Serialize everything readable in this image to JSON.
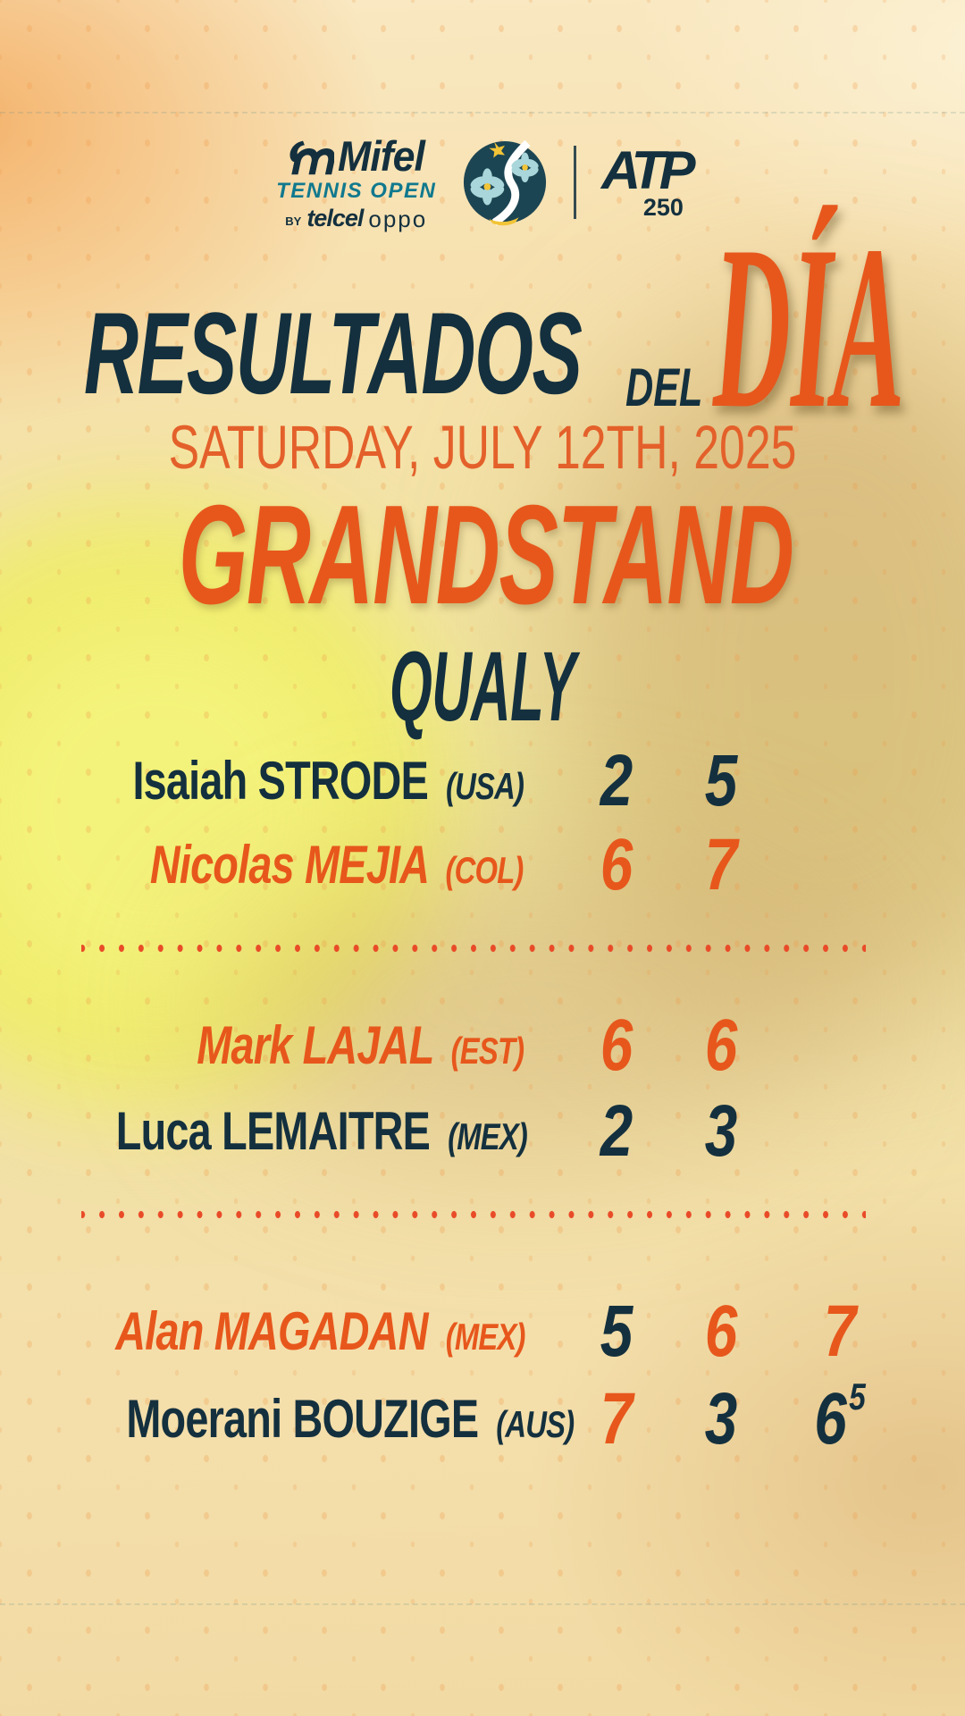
{
  "brand": {
    "mifel": "Mifel",
    "tennis_open": "TENNIS OPEN",
    "by": "BY",
    "telcel": "telcel",
    "oppo": "oppo",
    "atp": "ATP",
    "atp_tier": "250"
  },
  "title": {
    "main": "RESULTADOS",
    "del": "DEL",
    "dia": "DÍA"
  },
  "date": "SATURDAY, JULY 12TH, 2025",
  "venue": "GRANDSTAND",
  "section": "QUALY",
  "colors": {
    "navy": "#14303E",
    "orange": "#E7571C",
    "teal": "#11798E",
    "dot": "#E94B28"
  },
  "matches": [
    {
      "players": [
        {
          "first": "Isaiah",
          "last": "STRODE",
          "country": "(USA)",
          "winner": false,
          "sets": [
            {
              "value": "2",
              "won": false
            },
            {
              "value": "5",
              "won": false
            }
          ]
        },
        {
          "first": "Nicolas",
          "last": "MEJIA",
          "country": "(COL)",
          "winner": true,
          "sets": [
            {
              "value": "6",
              "won": true
            },
            {
              "value": "7",
              "won": true
            }
          ]
        }
      ]
    },
    {
      "players": [
        {
          "first": "Mark",
          "last": "LAJAL",
          "country": "(EST)",
          "winner": true,
          "sets": [
            {
              "value": "6",
              "won": true
            },
            {
              "value": "6",
              "won": true
            }
          ]
        },
        {
          "first": "Luca",
          "last": "LEMAITRE",
          "country": "(MEX)",
          "winner": false,
          "sets": [
            {
              "value": "2",
              "won": false
            },
            {
              "value": "3",
              "won": false
            }
          ]
        }
      ]
    },
    {
      "players": [
        {
          "first": "Alan",
          "last": "MAGADAN",
          "country": "(MEX)",
          "winner": true,
          "sets": [
            {
              "value": "5",
              "won": false
            },
            {
              "value": "6",
              "won": true
            },
            {
              "value": "7",
              "won": true
            }
          ]
        },
        {
          "first": "Moerani",
          "last": "BOUZIGE",
          "country": "(AUS)",
          "winner": false,
          "sets": [
            {
              "value": "7",
              "won": true
            },
            {
              "value": "3",
              "won": false
            },
            {
              "value": "6",
              "tiebreak": "5",
              "won": false
            }
          ]
        }
      ]
    }
  ]
}
